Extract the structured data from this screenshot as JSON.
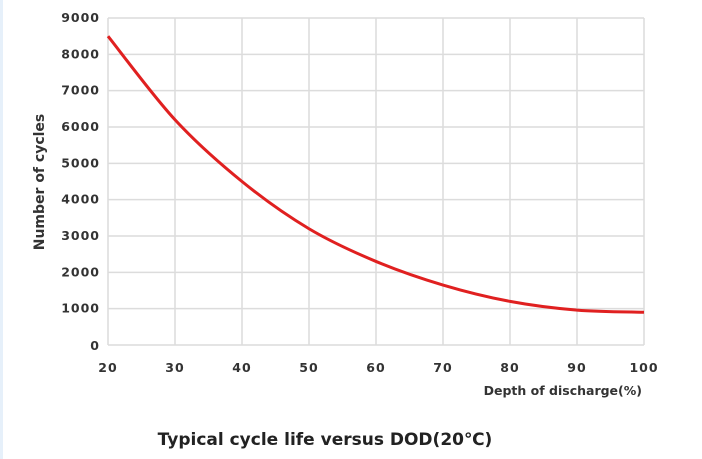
{
  "chart_data": {
    "type": "line",
    "title": "Typical cycle life versus DOD(20℃)",
    "xlabel": "Depth of discharge(%)",
    "ylabel": "Number of cycles",
    "xlim": [
      20,
      100
    ],
    "ylim": [
      0,
      9000
    ],
    "xticks": [
      "20",
      "30",
      "40",
      "50",
      "60",
      "70",
      "80",
      "90",
      "100"
    ],
    "yticks": [
      "0",
      "1000",
      "2000",
      "3000",
      "4000",
      "5000",
      "6000",
      "7000",
      "8000",
      "9000"
    ],
    "grid": true,
    "series": [
      {
        "x": [
          20,
          30,
          40,
          50,
          60,
          70,
          80,
          90,
          100
        ],
        "y": [
          8500,
          6200,
          4500,
          3200,
          2300,
          1650,
          1200,
          960,
          900
        ],
        "color": "#e02020"
      }
    ]
  }
}
